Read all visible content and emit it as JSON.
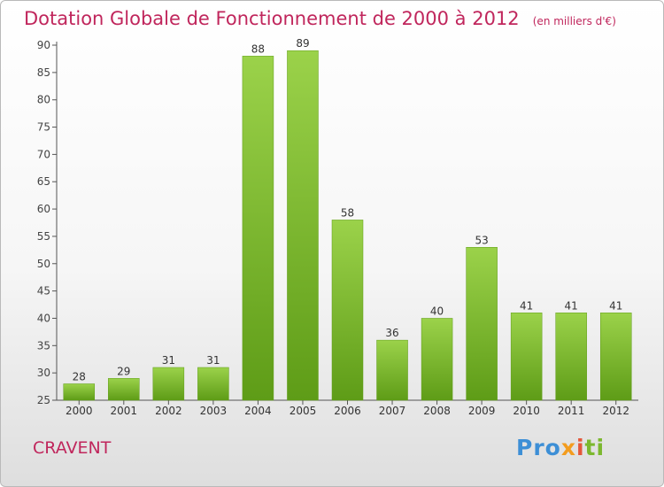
{
  "title": "Dotation Globale de Fonctionnement de 2000 à 2012",
  "unit_note": "(en milliers d'€)",
  "commune": "CRAVENT",
  "logo": {
    "text": "Proxiti",
    "colors": [
      "#3d8fd6",
      "#f39c1e",
      "#e4573a",
      "#7cb82f"
    ]
  },
  "chart_data": {
    "type": "bar",
    "categories": [
      "2000",
      "2001",
      "2002",
      "2003",
      "2004",
      "2005",
      "2006",
      "2007",
      "2008",
      "2009",
      "2010",
      "2011",
      "2012"
    ],
    "values": [
      28,
      29,
      31,
      31,
      88,
      89,
      58,
      36,
      40,
      53,
      41,
      41,
      41
    ],
    "title": "Dotation Globale de Fonctionnement de 2000 à 2012",
    "xlabel": "",
    "ylabel": "",
    "ylim": [
      25,
      90
    ],
    "yticks": [
      25,
      30,
      35,
      40,
      45,
      50,
      55,
      60,
      65,
      70,
      75,
      80,
      85,
      90
    ],
    "grid": false,
    "bar_color": "#7cb82f",
    "data_labels": true
  }
}
